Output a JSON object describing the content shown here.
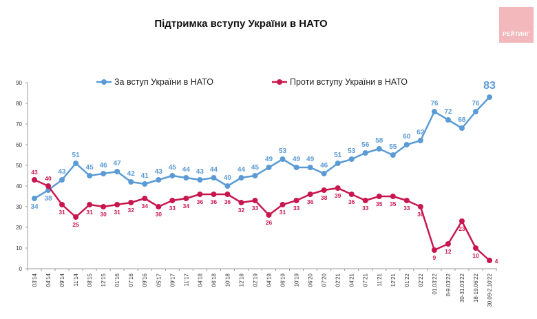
{
  "chart_data": {
    "type": "line",
    "title": "Підтримка вступу України в НАТО",
    "categories": [
      "03'14",
      "04'14",
      "09'14",
      "11'14",
      "08'15",
      "12'15",
      "01'16",
      "07'16",
      "09'16",
      "05'17",
      "09'17",
      "11'17",
      "04'18",
      "06'18",
      "10'18",
      "12'18",
      "02'19",
      "04'19",
      "06'19",
      "10'19",
      "06'20",
      "07'20",
      "02'21",
      "04'21",
      "07'21",
      "11'21",
      "12'21",
      "01'22",
      "02'22",
      "01.03'22",
      "8-9.03'22",
      "30-31.03'22",
      "18-19.06'22",
      "30.09-2.10'22"
    ],
    "series": [
      {
        "name": "За вступ України в НАТО",
        "color": "#5b9bd5",
        "values": [
          34,
          38,
          43,
          51,
          45,
          46,
          47,
          42,
          41,
          43,
          45,
          44,
          43,
          44,
          40,
          44,
          45,
          49,
          53,
          49,
          49,
          46,
          51,
          53,
          56,
          58,
          55,
          60,
          62,
          76,
          72,
          68,
          76,
          83
        ]
      },
      {
        "name": "Проти вступу України в НАТО",
        "color": "#c8174f",
        "values": [
          43,
          40,
          31,
          25,
          31,
          30,
          31,
          32,
          34,
          30,
          33,
          34,
          36,
          36,
          36,
          32,
          33,
          26,
          31,
          33,
          36,
          38,
          39,
          36,
          33,
          35,
          35,
          33,
          30,
          9,
          12,
          23,
          10,
          4
        ]
      }
    ],
    "ylim": [
      0,
      90
    ],
    "yticks": [
      0,
      10,
      20,
      30,
      40,
      50,
      60,
      70,
      80,
      90
    ],
    "grid": false,
    "legend": "top"
  },
  "logo": {
    "text": "РЕЙТИНГ",
    "color": "#f2b8bb"
  }
}
